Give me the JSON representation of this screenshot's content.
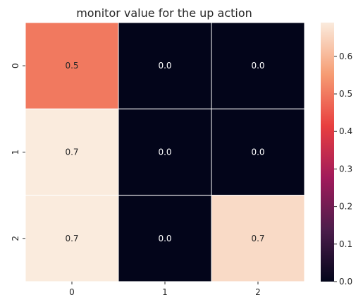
{
  "chart_data": {
    "type": "heatmap",
    "title": "monitor value for the up action",
    "x_ticks": [
      "0",
      "1",
      "2"
    ],
    "y_ticks": [
      "0",
      "1",
      "2"
    ],
    "values": [
      [
        0.5,
        0.0,
        0.0
      ],
      [
        0.69,
        0.0,
        0.0
      ],
      [
        0.69,
        0.0,
        0.66
      ]
    ],
    "annotations": [
      [
        "0.5",
        "0.0",
        "0.0"
      ],
      [
        "0.7",
        "0.0",
        "0.0"
      ],
      [
        "0.7",
        "0.0",
        "0.7"
      ]
    ],
    "colorbar": {
      "vmin": 0.0,
      "vmax": 0.69,
      "ticks": [
        "0.0",
        "0.1",
        "0.2",
        "0.3",
        "0.4",
        "0.5",
        "0.6"
      ],
      "colormap": "rocket",
      "colormap_stops": [
        "#03051A",
        "#4C1D4B",
        "#A11A5B",
        "#E83F3F",
        "#F69C73",
        "#FAEBDD"
      ]
    },
    "grid": false
  }
}
